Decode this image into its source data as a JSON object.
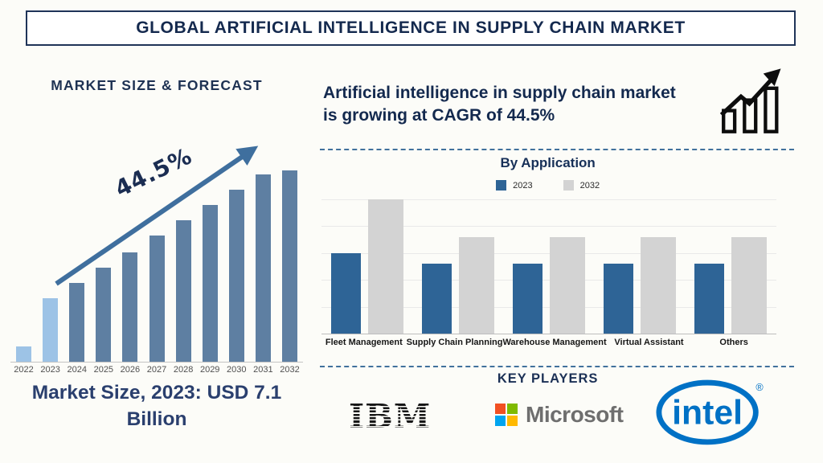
{
  "page": {
    "title": "GLOBAL ARTIFICIAL INTELLIGENCE IN SUPPLY CHAIN MARKET"
  },
  "left": {
    "heading": "MARKET SIZE & FORECAST",
    "cagr_label": "44.5%",
    "footer": "Market Size, 2023: USD 7.1 Billion"
  },
  "right": {
    "summary": "Artificial intelligence in supply chain market is growing at CAGR of 44.5%",
    "by_application_title": "By Application"
  },
  "key_players": {
    "title": "KEY PLAYERS",
    "ibm_label": "IBM",
    "microsoft_label": "Microsoft",
    "intel_label": "intel",
    "intel_reg": "®",
    "microsoft_colors": [
      "#F25022",
      "#7FBA00",
      "#00A4EF",
      "#FFB900"
    ],
    "intel_color": "#0071C5"
  },
  "colors": {
    "navy_text": "#14294E",
    "banner_border": "#1F3458",
    "trend_arrow": "#3F6F9E",
    "dashed_separator": "#41719C",
    "forecast_bar": "#5E7FA2",
    "forecast_bar_highlight": "#9DC3E6",
    "app_bar_2023": "#2E6496",
    "app_bar_2032": "#D3D3D3",
    "background": "#FCFCF8"
  },
  "chart_data": [
    {
      "type": "bar",
      "title": "Market Size & Forecast",
      "categories": [
        "2022",
        "2023",
        "2024",
        "2025",
        "2026",
        "2027",
        "2028",
        "2029",
        "2030",
        "2031",
        "2032"
      ],
      "values": [
        8,
        33,
        41,
        49,
        57,
        66,
        74,
        82,
        90,
        98,
        100
      ],
      "value_note": "relative bar heights in % of tallest bar (2032); y-axis unlabeled",
      "annotation": "44.5% CAGR trend arrow rising left to right",
      "labeled_point": "Market Size, 2023: USD 7.1 Billion",
      "xlabel": "",
      "ylabel": "",
      "grid": false,
      "bar_color": "#5E7FA2",
      "highlight_color": "#9DC3E6",
      "highlight_years": [
        "2022",
        "2023"
      ]
    },
    {
      "type": "bar",
      "title": "By Application",
      "categories": [
        "Fleet Management",
        "Supply Chain Planning",
        "Warehouse Management",
        "Virtual Assistant",
        "Others"
      ],
      "series": [
        {
          "name": "2023",
          "color": "#2E6496",
          "values": [
            60,
            52,
            52,
            52,
            52
          ]
        },
        {
          "name": "2032",
          "color": "#D3D3D3",
          "values": [
            100,
            72,
            72,
            72,
            72
          ]
        }
      ],
      "value_note": "relative bar heights, % of tallest bar (Fleet Management 2032); y-axis unlabeled",
      "ylim": [
        0,
        100
      ],
      "grid": true,
      "legend_position": "top"
    }
  ]
}
